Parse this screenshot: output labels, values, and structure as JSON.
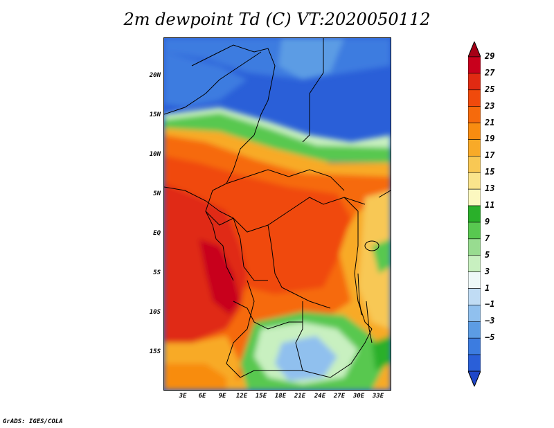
{
  "title": "2m dewpoint Td (C) VT:2020050112",
  "footer": "GrADS: IGES/COLA",
  "lat_labels": [
    "20N",
    "15N",
    "10N",
    "5N",
    "EQ",
    "5S",
    "10S",
    "15S"
  ],
  "lon_labels": [
    "3E",
    "6E",
    "9E",
    "12E",
    "15E",
    "18E",
    "21E",
    "24E",
    "27E",
    "30E",
    "33E"
  ],
  "colorbar": {
    "labels": [
      "29",
      "27",
      "25",
      "23",
      "21",
      "19",
      "17",
      "15",
      "13",
      "11",
      "9",
      "7",
      "5",
      "3",
      "1",
      "−1",
      "−3",
      "−5"
    ],
    "colors": [
      "#a50016",
      "#c8001c",
      "#e02a12",
      "#f04a0c",
      "#f66a0c",
      "#f88c10",
      "#f8aa28",
      "#f8c854",
      "#fae48c",
      "#fcf8c0",
      "#2ab02a",
      "#58c850",
      "#98dc90",
      "#c8f0c0",
      "#eef8f8",
      "#c0dcf4",
      "#90c0ee",
      "#5c9ce4",
      "#3c7ce0",
      "#2a5fd8",
      "#1e46c8"
    ]
  }
}
